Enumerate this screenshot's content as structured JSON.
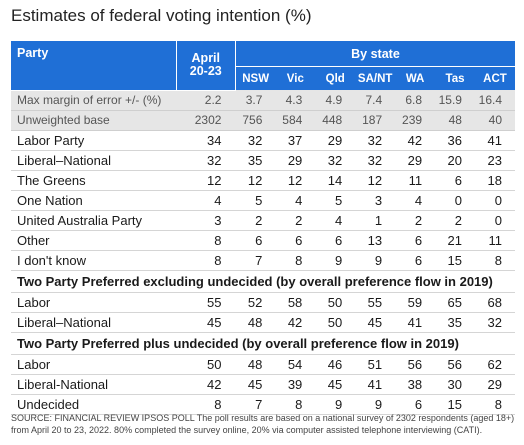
{
  "title": "Estimates of federal voting intention (%)",
  "header": {
    "party": "Party",
    "april_line1": "April",
    "april_line2": "20-23",
    "by_state": "By state",
    "states": [
      "NSW",
      "Vic",
      "Qld",
      "SA/NT",
      "WA",
      "Tas",
      "ACT"
    ]
  },
  "meta_rows": [
    {
      "label": "Max margin of error +/- (%)",
      "values": [
        "2.2",
        "3.7",
        "4.3",
        "4.9",
        "7.4",
        "6.8",
        "15.9",
        "16.4"
      ]
    },
    {
      "label": "Unweighted base",
      "values": [
        "2302",
        "756",
        "584",
        "448",
        "187",
        "239",
        "48",
        "40"
      ]
    }
  ],
  "primary_rows": [
    {
      "label": "Labor Party",
      "values": [
        "34",
        "32",
        "37",
        "29",
        "32",
        "42",
        "36",
        "41"
      ]
    },
    {
      "label": "Liberal–National",
      "values": [
        "32",
        "35",
        "29",
        "32",
        "32",
        "29",
        "20",
        "23"
      ]
    },
    {
      "label": "The Greens",
      "values": [
        "12",
        "12",
        "12",
        "14",
        "12",
        "11",
        "6",
        "18"
      ]
    },
    {
      "label": "One Nation",
      "values": [
        "4",
        "5",
        "4",
        "5",
        "3",
        "4",
        "0",
        "0"
      ]
    },
    {
      "label": "United Australia Party",
      "values": [
        "3",
        "2",
        "2",
        "4",
        "1",
        "2",
        "2",
        "0"
      ]
    },
    {
      "label": "Other",
      "values": [
        "8",
        "6",
        "6",
        "6",
        "13",
        "6",
        "21",
        "11"
      ]
    },
    {
      "label": "I don't know",
      "values": [
        "8",
        "7",
        "8",
        "9",
        "9",
        "6",
        "15",
        "8"
      ]
    }
  ],
  "section1": {
    "title": "Two Party Preferred excluding undecided (by overall preference flow in 2019)",
    "rows": [
      {
        "label": "Labor",
        "values": [
          "55",
          "52",
          "58",
          "50",
          "55",
          "59",
          "65",
          "68"
        ]
      },
      {
        "label": "Liberal–National",
        "values": [
          "45",
          "48",
          "42",
          "50",
          "45",
          "41",
          "35",
          "32"
        ]
      }
    ]
  },
  "section2": {
    "title": "Two Party Preferred plus undecided (by overall preference flow in 2019)",
    "rows": [
      {
        "label": "Labor",
        "values": [
          "50",
          "48",
          "54",
          "46",
          "51",
          "56",
          "56",
          "62"
        ]
      },
      {
        "label": "Liberal-National",
        "values": [
          "42",
          "45",
          "39",
          "45",
          "41",
          "38",
          "30",
          "29"
        ]
      },
      {
        "label": "Undecided",
        "values": [
          "8",
          "7",
          "8",
          "9",
          "9",
          "6",
          "15",
          "8"
        ]
      }
    ]
  },
  "footnote": "SOURCE: FINANCIAL REVIEW IPSOS POLL The poll results are based on a national survey of 2302 respondents (aged 18+) from April 20 to 23, 2022. 80% completed the survey online, 20% via computer assisted telephone interviewing (CATI).",
  "colors": {
    "header_bg": "#1f6fd6",
    "meta_bg": "#e6e6e6"
  }
}
